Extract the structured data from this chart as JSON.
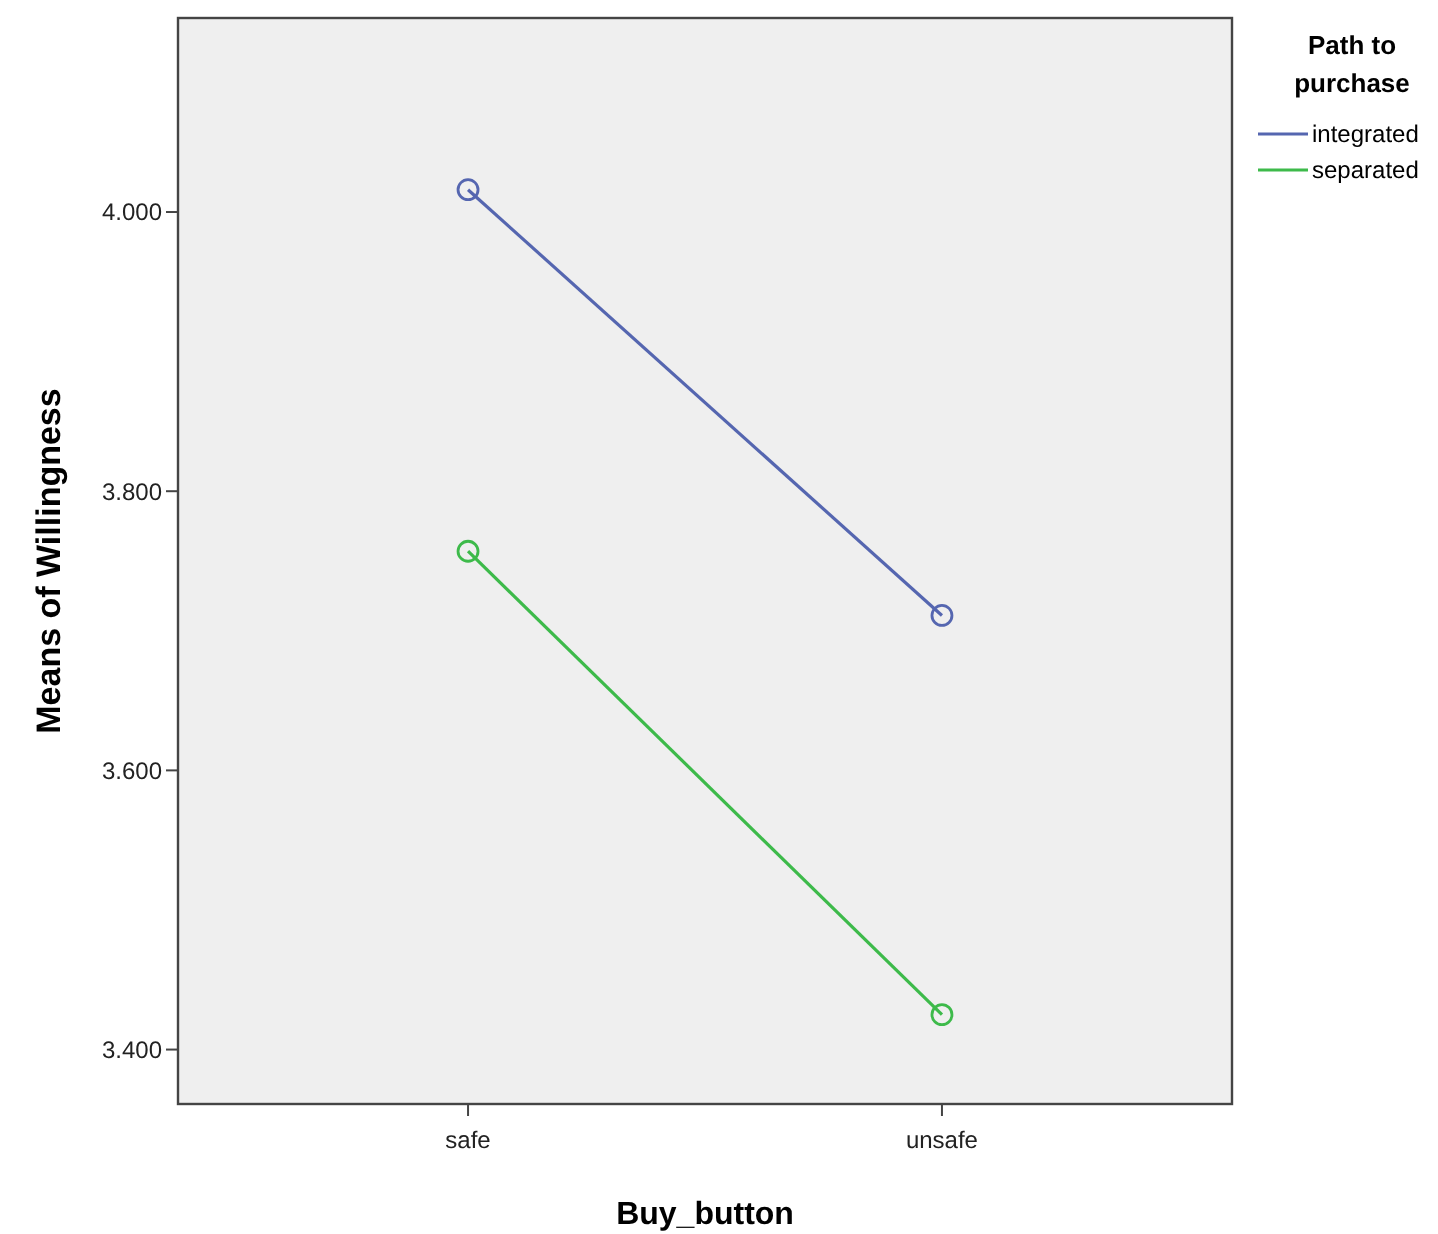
{
  "chart_data": {
    "type": "line",
    "xlabel": "Buy_button",
    "ylabel": "Means of Willingness",
    "legend_title": "Path to purchase",
    "categories": [
      "safe",
      "unsafe"
    ],
    "series": [
      {
        "name": "integrated",
        "color": "#5566b0",
        "values": [
          4.016,
          3.711
        ]
      },
      {
        "name": "separated",
        "color": "#3dba4a",
        "values": [
          3.757,
          3.425
        ]
      }
    ],
    "ylim": [
      3.361,
      4.139
    ],
    "yticks": [
      {
        "value": 3.4,
        "label": "3.400"
      },
      {
        "value": 3.6,
        "label": "3.600"
      },
      {
        "value": 3.8,
        "label": "3.800"
      },
      {
        "value": 4.0,
        "label": "4.000"
      }
    ],
    "grid": false,
    "legend": "top right",
    "marker": "circle",
    "line_style": "solid"
  }
}
